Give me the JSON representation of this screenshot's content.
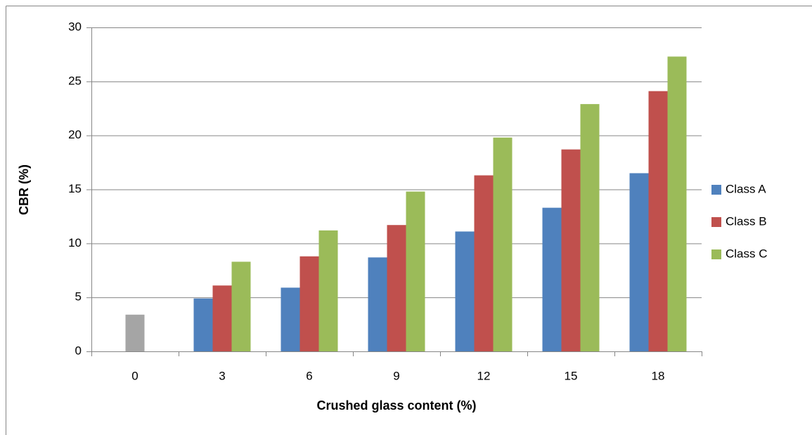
{
  "chart_data": {
    "type": "bar",
    "x_label": "Crushed glass content (%)",
    "y_label": "CBR (%)",
    "categories": [
      "0",
      "3",
      "6",
      "9",
      "12",
      "15",
      "18"
    ],
    "series": [
      {
        "name": "Class A",
        "color": "#4f81bd",
        "values": [
          null,
          4.9,
          5.9,
          8.7,
          11.1,
          13.3,
          16.5
        ]
      },
      {
        "name": "Class B",
        "color": "#c0504d",
        "values": [
          null,
          6.1,
          8.8,
          11.7,
          16.3,
          18.7,
          24.1
        ]
      },
      {
        "name": "Class C",
        "color": "#9bbb59",
        "values": [
          null,
          8.3,
          11.2,
          14.8,
          19.8,
          22.9,
          27.3
        ]
      },
      {
        "color": "#a5a5a5",
        "values": [
          3.4,
          null,
          null,
          null,
          null,
          null,
          null
        ]
      }
    ],
    "ylim": [
      0,
      30
    ],
    "yticks": [
      0,
      5,
      10,
      15,
      20,
      25,
      30
    ],
    "grid": true,
    "legend": "right"
  }
}
